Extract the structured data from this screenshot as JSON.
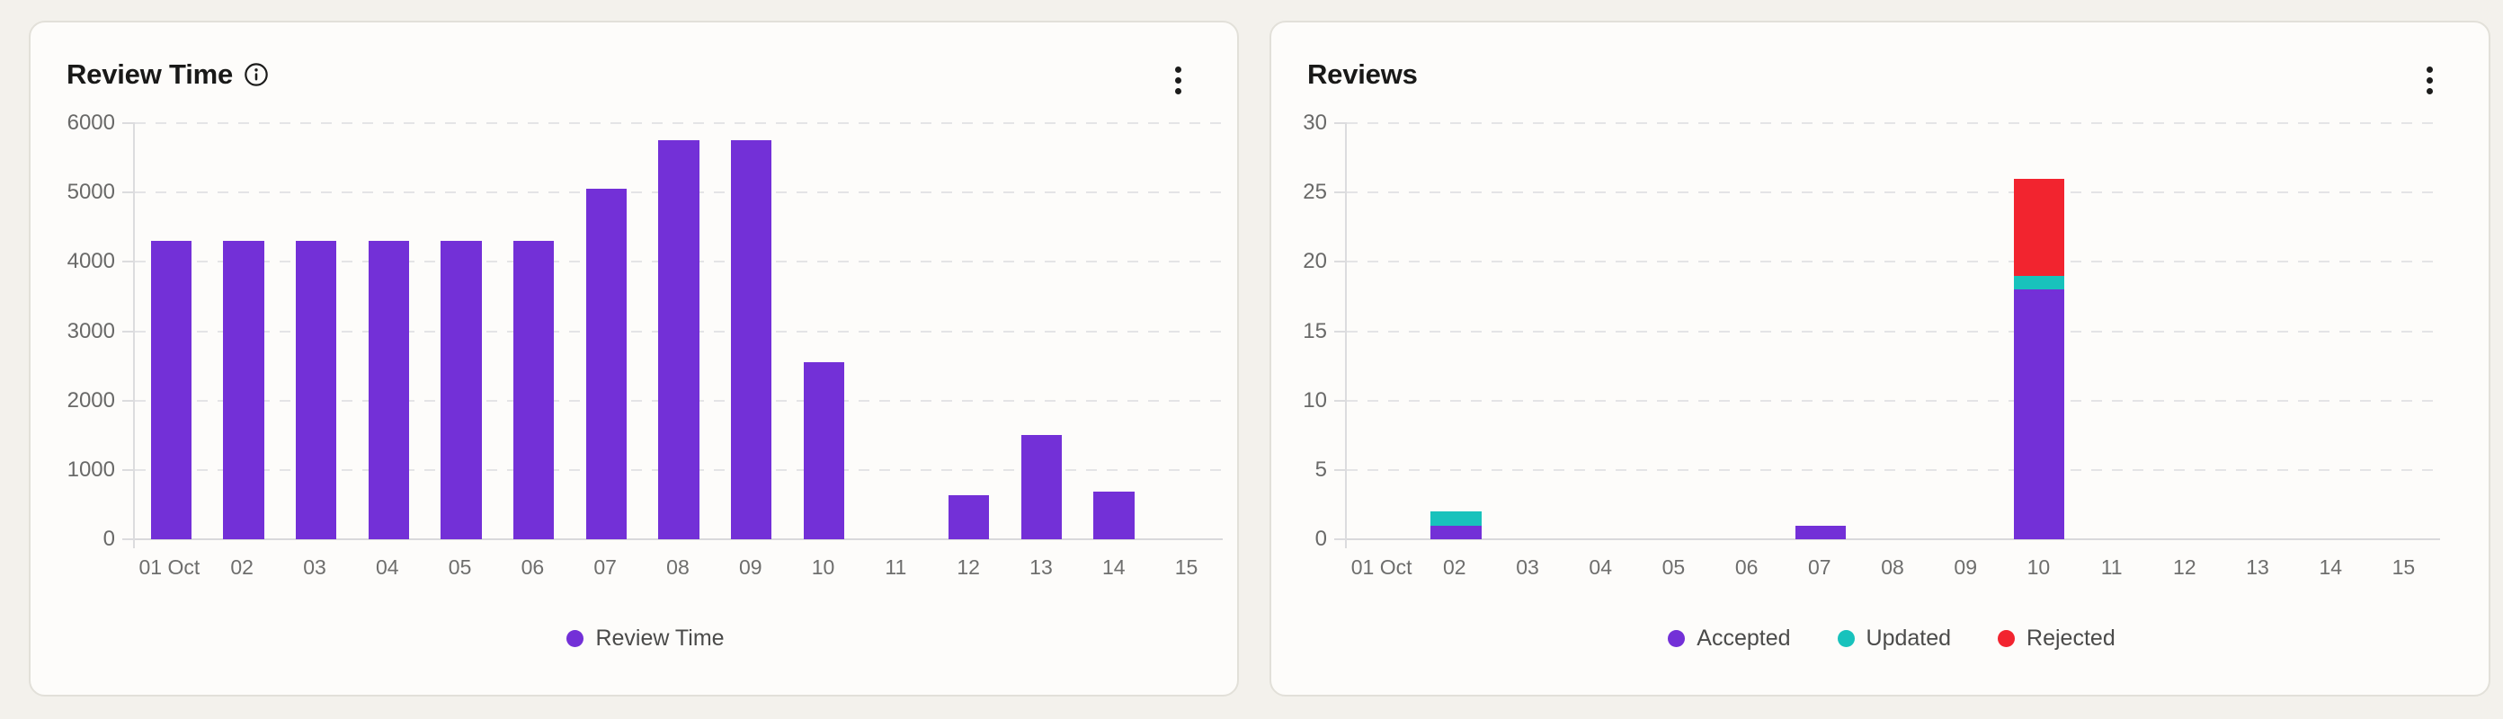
{
  "page": {
    "background_color": "#F3F1EC",
    "card_background": "#FDFCFA",
    "card_border": "#E2E0D9"
  },
  "cards": [
    {
      "title": "Review Time",
      "info_icon": "info-circle-icon",
      "menu_icon": "kebab-vertical-icon",
      "chart_data": {
        "type": "bar",
        "categories": [
          "01 Oct",
          "02",
          "03",
          "04",
          "05",
          "06",
          "07",
          "08",
          "09",
          "10",
          "11",
          "12",
          "13",
          "14",
          "15"
        ],
        "series": [
          {
            "name": "Review Time",
            "color": "#7330D7",
            "values": [
              4300,
              4300,
              4300,
              4300,
              4300,
              4300,
              5050,
              5750,
              5750,
              2550,
              0,
              640,
              1500,
              690,
              0
            ]
          }
        ],
        "title": "Review Time",
        "xlabel": "",
        "ylabel": "",
        "ylim": [
          0,
          6000
        ],
        "ytick_step": 1000,
        "yticks": [
          0,
          1000,
          2000,
          3000,
          4000,
          5000,
          6000
        ],
        "grid": "horizontal-dashed",
        "legend_position": "bottom"
      }
    },
    {
      "title": "Reviews",
      "menu_icon": "kebab-vertical-icon",
      "chart_data": {
        "type": "bar",
        "stacked": true,
        "categories": [
          "01 Oct",
          "02",
          "03",
          "04",
          "05",
          "06",
          "07",
          "08",
          "09",
          "10",
          "11",
          "12",
          "13",
          "14",
          "15"
        ],
        "series": [
          {
            "name": "Accepted",
            "color": "#7330D7",
            "values": [
              0,
              1,
              0,
              0,
              0,
              0,
              1,
              0,
              0,
              18,
              0,
              0,
              0,
              0,
              0
            ]
          },
          {
            "name": "Updated",
            "color": "#18C2BC",
            "values": [
              0,
              1,
              0,
              0,
              0,
              0,
              0,
              0,
              0,
              1,
              0,
              0,
              0,
              0,
              0
            ]
          },
          {
            "name": "Rejected",
            "color": "#F2242F",
            "values": [
              0,
              0,
              0,
              0,
              0,
              0,
              0,
              0,
              0,
              7,
              0,
              0,
              0,
              0,
              0
            ]
          }
        ],
        "title": "Reviews",
        "xlabel": "",
        "ylabel": "",
        "ylim": [
          0,
          30
        ],
        "ytick_step": 5,
        "yticks": [
          0,
          5,
          10,
          15,
          20,
          25,
          30
        ],
        "grid": "horizontal-dashed",
        "legend_position": "bottom"
      }
    }
  ]
}
